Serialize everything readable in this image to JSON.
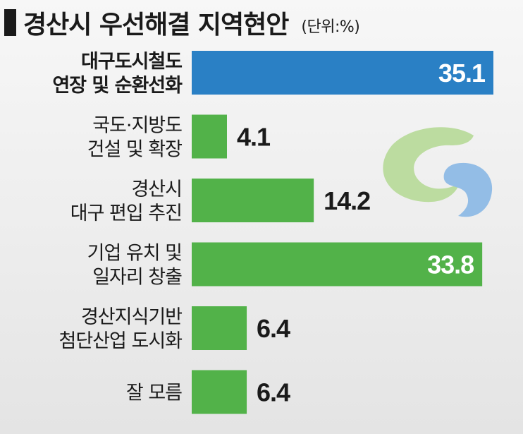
{
  "title": "경산시 우선해결 지역현안",
  "unit": "(단위:%)",
  "colors": {
    "highlight": "#2a80c5",
    "bar": "#52b249",
    "logo_green": "#bcdca0",
    "logo_blue": "#93bde6"
  },
  "chart_data": {
    "type": "bar",
    "orientation": "horizontal",
    "title": "경산시 우선해결 지역현안",
    "unit": "(단위:%)",
    "categories": [
      [
        "대구도시철도",
        "연장 및 순환선화"
      ],
      [
        "국도·지방도",
        "건설 및 확장"
      ],
      [
        "경산시",
        "대구 편입 추진"
      ],
      [
        "기업 유치 및",
        "일자리 창출"
      ],
      [
        "경산지식기반",
        "첨단산업 도시화"
      ],
      [
        "잘 모름"
      ]
    ],
    "values": [
      35.1,
      4.1,
      14.2,
      33.8,
      6.4,
      6.4
    ],
    "value_labels": [
      "35.1",
      "4.1",
      "14.2",
      "33.8",
      "6.4",
      "6.4"
    ],
    "highlight_index": 0,
    "xlim": [
      0,
      35.1
    ]
  }
}
